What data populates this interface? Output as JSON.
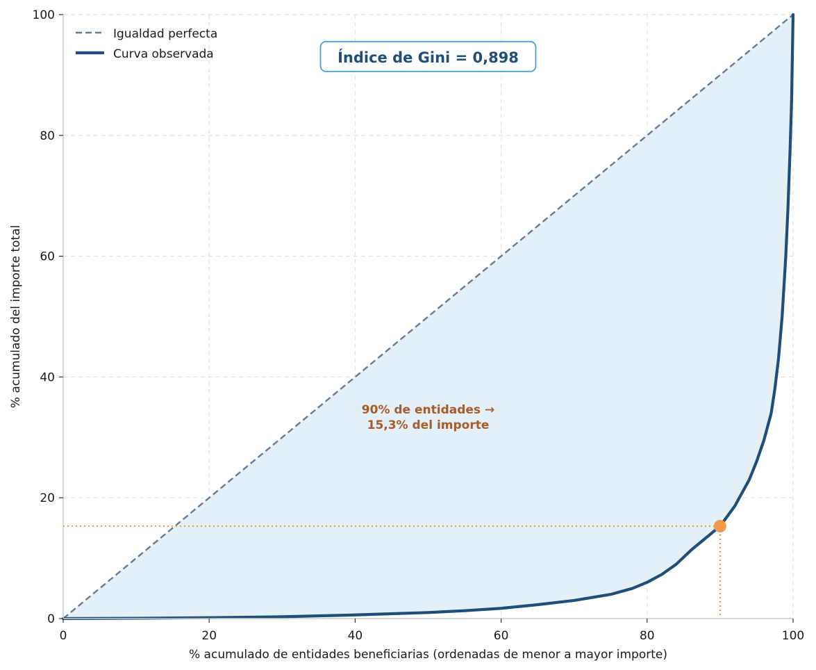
{
  "chart_data": {
    "type": "line",
    "title": "",
    "xlabel": "% acumulado de entidades beneficiarias (ordenadas de menor a mayor importe)",
    "ylabel": "% acumulado del importe total",
    "xlim": [
      0,
      100
    ],
    "ylim": [
      0,
      100
    ],
    "x_ticks": [
      "0",
      "20",
      "40",
      "60",
      "80",
      "100"
    ],
    "y_ticks": [
      "0",
      "20",
      "40",
      "60",
      "80",
      "100"
    ],
    "grid": true,
    "legend": {
      "position": "top-left",
      "entries": [
        "Igualdad perfecta",
        "Curva observada"
      ]
    },
    "series": [
      {
        "name": "Igualdad perfecta",
        "style": "dashed",
        "color": "#6b7a8f",
        "x": [
          0,
          100
        ],
        "y": [
          0,
          100
        ]
      },
      {
        "name": "Curva observada",
        "style": "solid",
        "color": "#1f4e79",
        "fill": "#e3f0f8",
        "x": [
          0,
          10,
          20,
          30,
          40,
          50,
          55,
          60,
          65,
          70,
          75,
          78,
          80,
          82,
          84,
          86,
          88,
          90,
          92,
          94,
          95,
          96,
          97,
          97.5,
          98,
          98.5,
          99,
          99.3,
          99.6,
          99.8,
          99.9,
          100
        ],
        "y": [
          0,
          0.05,
          0.15,
          0.3,
          0.6,
          1.0,
          1.3,
          1.7,
          2.3,
          3.0,
          4.0,
          5.0,
          6.0,
          7.3,
          9.0,
          11.3,
          13.3,
          15.3,
          18.6,
          23.0,
          26.0,
          29.5,
          34.0,
          38.0,
          43.0,
          50.0,
          60.0,
          68.0,
          78.0,
          86.0,
          93.0,
          100
        ]
      }
    ],
    "highlight_point": {
      "x": 90,
      "y": 15.3,
      "color": "#f2994a"
    },
    "gini_box": {
      "text": "Índice de Gini = 0,898",
      "x": 50,
      "y": 93,
      "color": "#1f4e79",
      "border": "#4a9fd5"
    },
    "annotation": {
      "lines": [
        "90% de entidades →",
        "15,3% del importe"
      ],
      "x": 50,
      "y": 33.5,
      "color": "#a65b2a"
    }
  }
}
